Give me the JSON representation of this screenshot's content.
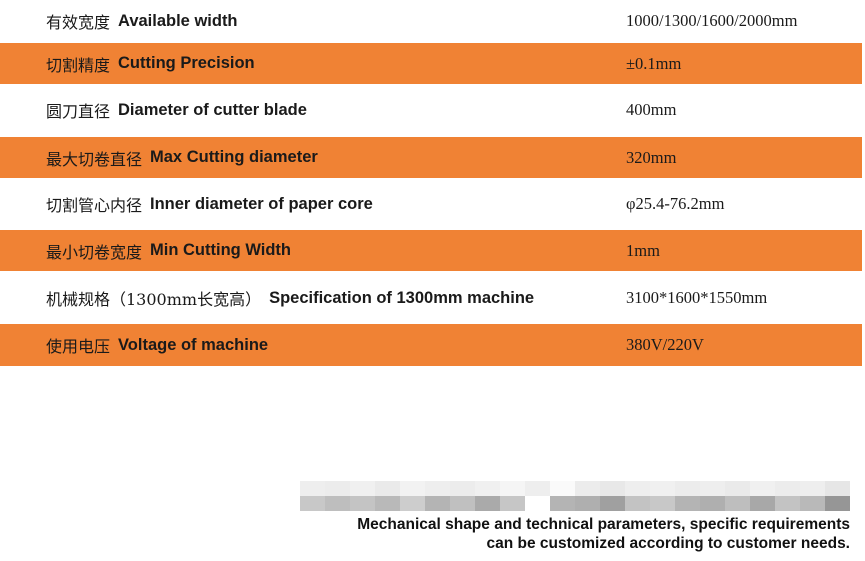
{
  "colors": {
    "accent": "#F08234"
  },
  "specs": [
    {
      "zh": "有效宽度",
      "en": "Available width",
      "value": "1000/1300/1600/2000mm"
    },
    {
      "zh": "切割精度",
      "en": "Cutting Precision",
      "value": "±0.1mm"
    },
    {
      "zh": "圆刀直径",
      "en": "Diameter of cutter blade",
      "value": "400mm"
    },
    {
      "zh": "最大切卷直径",
      "en": "Max Cutting diameter",
      "value": "320mm"
    },
    {
      "zh": "切割管心内径",
      "en": "Inner diameter of paper core",
      "value": "φ25.4-76.2mm"
    },
    {
      "zh": "最小切卷宽度",
      "en": "Min Cutting Width",
      "value": "1mm"
    },
    {
      "zh": "机械规格（1300mm长宽高）",
      "en": "Specification of 1300mm machine",
      "value": "3100*1600*1550mm"
    },
    {
      "zh": "使用电压",
      "en": "Voltage of machine",
      "value": "380V/220V"
    }
  ],
  "note": {
    "line1": "Mechanical shape and technical parameters, specific requirements",
    "line2": "can be customized according to customer needs."
  }
}
